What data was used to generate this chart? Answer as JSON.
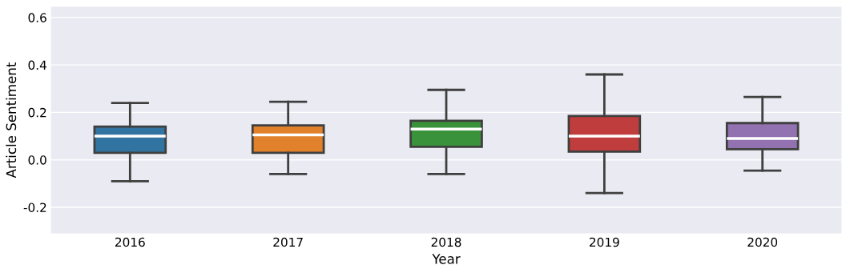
{
  "chart_data": {
    "type": "box",
    "xlabel": "Year",
    "ylabel": "Article Sentiment",
    "categories": [
      "2016",
      "2017",
      "2018",
      "2019",
      "2020"
    ],
    "colors": [
      "#3274a1",
      "#e1812c",
      "#3a923a",
      "#c03d3e",
      "#9372b2"
    ],
    "boxes": [
      {
        "low": -0.09,
        "q1": 0.03,
        "median": 0.1,
        "q3": 0.14,
        "high": 0.24
      },
      {
        "low": -0.06,
        "q1": 0.03,
        "median": 0.105,
        "q3": 0.145,
        "high": 0.245
      },
      {
        "low": -0.06,
        "q1": 0.055,
        "median": 0.13,
        "q3": 0.165,
        "high": 0.295
      },
      {
        "low": -0.14,
        "q1": 0.035,
        "median": 0.1,
        "q3": 0.185,
        "high": 0.36
      },
      {
        "low": -0.045,
        "q1": 0.045,
        "median": 0.09,
        "q3": 0.155,
        "high": 0.265
      }
    ],
    "ylim": [
      -0.31,
      0.645
    ],
    "yticks": [
      -0.2,
      {
        "value": 0,
        "label": "0.0"
      },
      0.2,
      0.4,
      0.6
    ],
    "grid": "y",
    "legend": false
  }
}
